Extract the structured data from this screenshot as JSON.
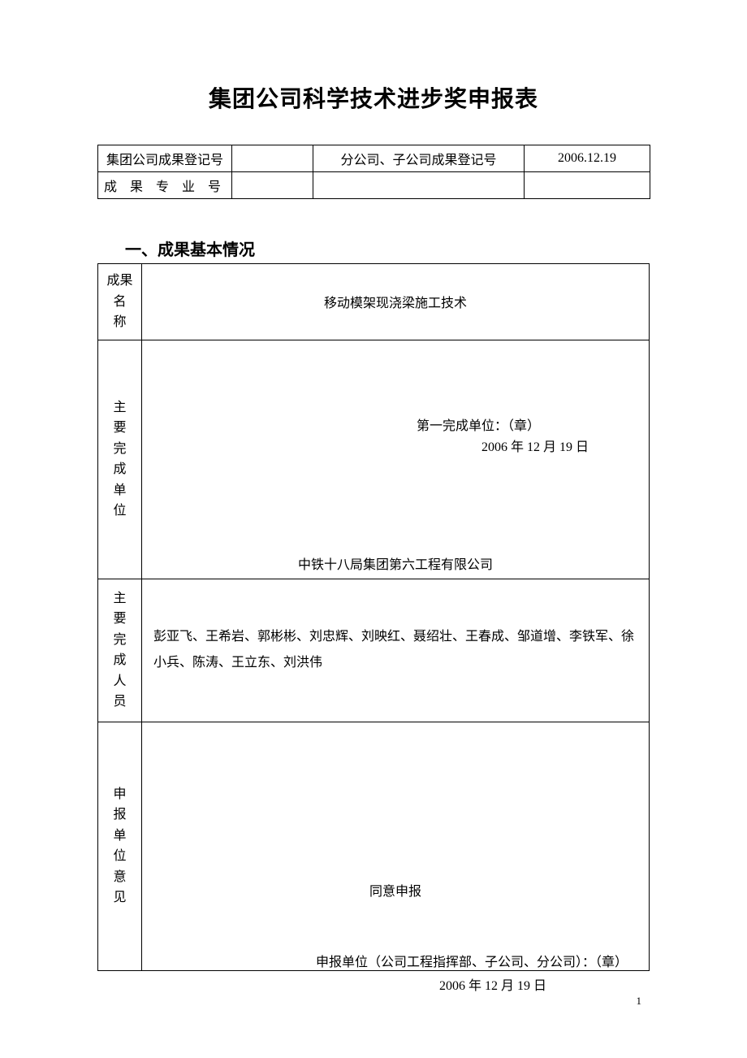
{
  "colors": {
    "page_bg": "#ffffff",
    "text": "#000000",
    "border": "#000000"
  },
  "fonts": {
    "title_family": "SimHei",
    "body_family": "SimSun",
    "title_size_pt": 21,
    "section_size_pt": 15,
    "body_size_pt": 12
  },
  "title": "集团公司科学技术进步奖申报表",
  "reg_table": {
    "r1c1": "集团公司成果登记号",
    "r1c2": "",
    "r1c3": "分公司、子公司成果登记号",
    "r1c4": "2006.12.19",
    "r2c1": "成 果 专 业 号",
    "r2c2": "",
    "r2c3": "",
    "r2c4": ""
  },
  "section1_title": "一、成果基本情况",
  "rows": {
    "name": {
      "label_l1": "成果名",
      "label_l2": "称",
      "value": "移动模架现浇梁施工技术"
    },
    "unit": {
      "label_c": "主要完成单位",
      "value": "中铁十八局集团第六工程有限公司",
      "sig_line": "第一完成单位：（章）",
      "sig_date": "2006 年 12 月 19 日"
    },
    "people": {
      "label_c": "主要完成人员",
      "value": "彭亚飞、王希岩、郭彬彬、刘忠辉、刘映红、聂绍壮、王春成、邹道增、李铁军、徐小兵、陈涛、王立东、刘洪伟"
    },
    "opinion": {
      "label_c": "申报单位意见",
      "value": "同意申报",
      "sig_line": "申报单位（公司工程指挥部、子公司、分公司）：（章）",
      "sig_date": "2006 年 12 月 19 日"
    }
  },
  "page_number": "1"
}
